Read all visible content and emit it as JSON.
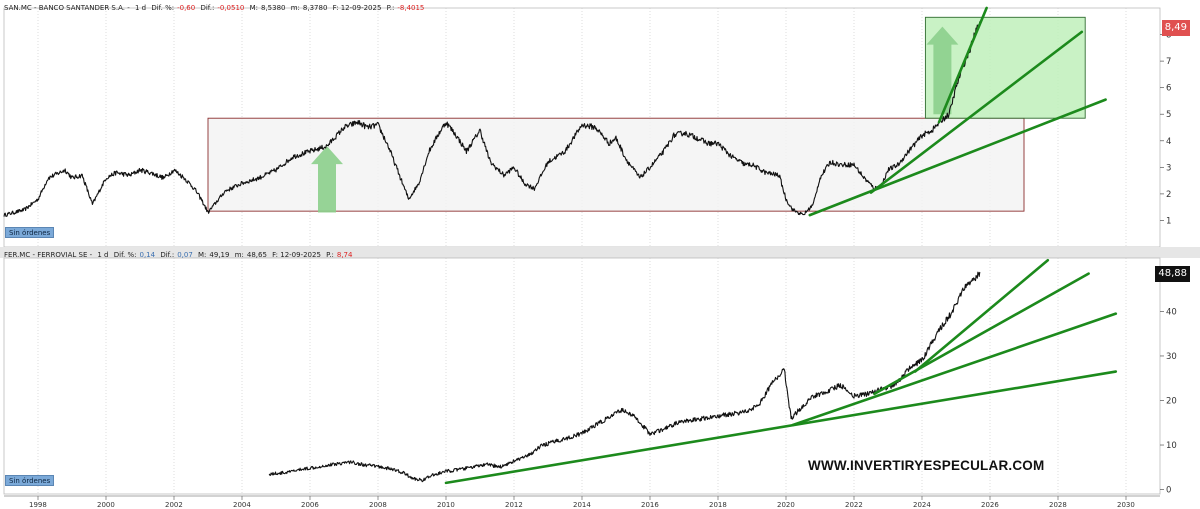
{
  "panel1": {
    "header": {
      "symbol": "SAN.MC - BANCO SANTANDER S.A. -",
      "period": "1 d",
      "dif_pct_label": "Dif. %:",
      "dif_pct_value": "-0,60",
      "dif_label": "Dif.:",
      "dif_value": "-0,0510",
      "max_label": "M:",
      "max_value": "8,5380",
      "min_label": "m:",
      "min_value": "8,3780",
      "date_label": "F: 12-09-2025",
      "p_label": "P.:",
      "p_value": "-8,4015"
    },
    "last_price": "8,49",
    "orders_label": "Sin órdenes"
  },
  "panel2": {
    "header": {
      "symbol": "FER.MC - FERROVIAL SE -",
      "period": "1 d",
      "dif_pct_label": "Dif. %:",
      "dif_pct_value": "0,14",
      "dif_label": "Dif.:",
      "dif_value": "0,07",
      "max_label": "M:",
      "max_value": "49,19",
      "min_label": "m:",
      "min_value": "48,65",
      "date_label": "F: 12-09-2025",
      "p_label": "P.:",
      "p_value": "8,74"
    },
    "last_price": "48,88",
    "orders_label": "Sin órdenes"
  },
  "watermark": "WWW.INVERTIRYESPECULAR.COM",
  "colors": {
    "price_line": "#111111",
    "trendline": "#1c8a1c",
    "range_box_fill": "#f2f2f2",
    "range_box_border": "#8b2e2e",
    "breakout_box_fill": "#bff0bb",
    "breakout_box_border": "#2f6b2f",
    "arrow": "#8ccf8c",
    "grid": "#c8c8c8",
    "panel_separator": "#d0d0d0",
    "santander_badge": "#e05050",
    "ferrovial_badge": "#111111"
  },
  "chart_data": [
    {
      "type": "line",
      "series": [
        {
          "x": [
            1997.0,
            1997.6,
            1998.0,
            1998.3,
            1998.8,
            1999.0,
            1999.3,
            1999.6,
            2000.0,
            2000.3,
            2000.7,
            2001.0,
            2001.3,
            2001.7,
            2002.0,
            2002.3,
            2002.6,
            2002.8,
            2003.0,
            2003.5,
            2004.0,
            2004.5,
            2005.0,
            2005.5,
            2006.0,
            2006.5,
            2007.0,
            2007.4,
            2007.7,
            2008.0,
            2008.3,
            2008.6,
            2008.9,
            2009.2,
            2009.5,
            2009.8,
            2010.0,
            2010.3,
            2010.6,
            2011.0,
            2011.3,
            2011.7,
            2012.0,
            2012.3,
            2012.6,
            2013.0,
            2013.5,
            2014.0,
            2014.4,
            2014.8,
            2015.0,
            2015.3,
            2015.7,
            2016.0,
            2016.4,
            2016.7,
            2017.0,
            2017.4,
            2017.7,
            2018.0,
            2018.4,
            2018.8,
            2019.0,
            2019.4,
            2019.8,
            2020.0,
            2020.2,
            2020.5,
            2020.8,
            2021.0,
            2021.3,
            2021.6,
            2022.0,
            2022.3,
            2022.6,
            2022.8,
            2023.0,
            2023.3,
            2023.6,
            2024.0,
            2024.3,
            2024.6,
            2024.8,
            2025.0,
            2025.2,
            2025.4,
            2025.55,
            2025.7
          ],
          "y": [
            1.2,
            1.4,
            1.8,
            2.6,
            2.9,
            2.6,
            2.7,
            1.6,
            2.6,
            2.8,
            2.7,
            2.9,
            2.8,
            2.6,
            2.9,
            2.6,
            2.2,
            1.8,
            1.3,
            2.1,
            2.4,
            2.6,
            2.9,
            3.4,
            3.6,
            3.8,
            4.5,
            4.7,
            4.5,
            4.6,
            3.8,
            2.8,
            1.8,
            2.4,
            3.6,
            4.3,
            4.7,
            4.2,
            3.6,
            4.4,
            3.2,
            2.7,
            3.0,
            2.4,
            2.2,
            3.2,
            3.6,
            4.6,
            4.5,
            3.9,
            4.1,
            3.3,
            2.6,
            3.0,
            3.6,
            4.2,
            4.3,
            4.1,
            3.9,
            3.9,
            3.4,
            3.1,
            3.1,
            2.8,
            2.7,
            1.8,
            1.4,
            1.2,
            1.6,
            2.6,
            3.2,
            3.1,
            3.1,
            2.6,
            2.2,
            2.3,
            2.9,
            3.1,
            3.6,
            4.2,
            4.4,
            4.8,
            5.0,
            6.0,
            6.8,
            7.4,
            8.0,
            8.49
          ]
        }
      ],
      "ylim": [
        0,
        9
      ],
      "xlim": [
        1997,
        2031
      ],
      "y_ticks": [
        1,
        2,
        3,
        4,
        5,
        6,
        7,
        8
      ],
      "x_ticks": [
        1998,
        2000,
        2002,
        2004,
        2006,
        2008,
        2010,
        2012,
        2014,
        2016,
        2018,
        2020,
        2022,
        2024,
        2026,
        2028,
        2030
      ],
      "grid": "vertical",
      "annotations": {
        "range_box": {
          "x": [
            2003.0,
            2027.0
          ],
          "y": [
            1.35,
            4.85
          ]
        },
        "breakout_box": {
          "x": [
            2024.1,
            2028.8
          ],
          "y": [
            4.85,
            8.65
          ]
        },
        "trendlines": [
          {
            "x": [
              2020.7,
              2029.4
            ],
            "y": [
              1.2,
              5.55
            ]
          },
          {
            "x": [
              2022.5,
              2028.7
            ],
            "y": [
              2.05,
              8.1
            ]
          },
          {
            "x": [
              2024.5,
              2025.9
            ],
            "y": [
              4.7,
              9.0
            ]
          }
        ],
        "arrows": [
          {
            "x": 2006.5,
            "y": [
              1.3,
              3.8
            ]
          },
          {
            "x": 2024.6,
            "y": [
              5.0,
              8.3
            ]
          }
        ]
      }
    },
    {
      "type": "line",
      "series": [
        {
          "x": [
            2004.8,
            2005.3,
            2005.8,
            2006.3,
            2006.8,
            2007.2,
            2007.6,
            2008.0,
            2008.4,
            2008.8,
            2009.0,
            2009.3,
            2009.6,
            2010.0,
            2010.4,
            2010.8,
            2011.2,
            2011.6,
            2012.0,
            2012.4,
            2012.8,
            2013.2,
            2013.6,
            2014.0,
            2014.4,
            2014.8,
            2015.2,
            2015.6,
            2016.0,
            2016.4,
            2016.8,
            2017.2,
            2017.6,
            2018.0,
            2018.4,
            2018.8,
            2019.2,
            2019.6,
            2019.95,
            2020.15,
            2020.4,
            2020.8,
            2021.2,
            2021.6,
            2022.0,
            2022.4,
            2022.8,
            2023.2,
            2023.6,
            2024.0,
            2024.3,
            2024.6,
            2024.9,
            2025.2,
            2025.5,
            2025.7
          ],
          "y": [
            3.5,
            3.8,
            4.6,
            5.2,
            5.8,
            6.2,
            5.5,
            5.2,
            4.6,
            3.6,
            2.5,
            2.1,
            3.2,
            4.1,
            4.5,
            5.1,
            5.6,
            5.1,
            6.4,
            7.5,
            9.8,
            10.8,
            11.6,
            12.6,
            14.5,
            16.2,
            18.0,
            16.0,
            12.5,
            13.5,
            15.0,
            15.5,
            16.0,
            16.5,
            17.0,
            17.5,
            19.0,
            24.0,
            27.0,
            16.0,
            18.0,
            21.0,
            22.0,
            23.5,
            21.0,
            21.5,
            22.5,
            23.5,
            27.0,
            29.0,
            33.0,
            37.0,
            40.0,
            45.0,
            47.0,
            48.88
          ]
        }
      ],
      "ylim": [
        -1,
        52
      ],
      "xlim": [
        1997,
        2031
      ],
      "y_ticks": [
        0,
        10,
        20,
        30,
        40
      ],
      "x_ticks": [
        1998,
        2000,
        2002,
        2004,
        2006,
        2008,
        2010,
        2012,
        2014,
        2016,
        2018,
        2020,
        2022,
        2024,
        2026,
        2028,
        2030
      ],
      "grid": "vertical",
      "annotations": {
        "trendlines": [
          {
            "x": [
              2010.0,
              2029.7
            ],
            "y": [
              1.5,
              26.5
            ]
          },
          {
            "x": [
              2020.2,
              2029.7
            ],
            "y": [
              14.5,
              39.5
            ]
          },
          {
            "x": [
              2022.6,
              2028.9
            ],
            "y": [
              21.5,
              48.5
            ]
          },
          {
            "x": [
              2023.8,
              2027.7
            ],
            "y": [
              26.5,
              51.5
            ]
          }
        ]
      }
    }
  ]
}
